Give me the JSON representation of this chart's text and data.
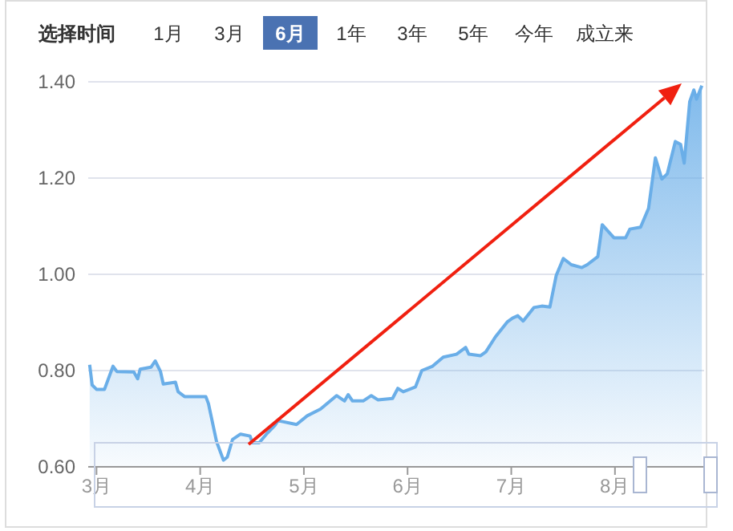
{
  "chart_data": {
    "type": "area",
    "title": "选择时间",
    "annotations": [
      "1月",
      "3月",
      "6月",
      "1年",
      "3年",
      "5年",
      "今年",
      "成立来"
    ],
    "x": [
      2.934,
      2.958,
      3.0,
      3.077,
      3.159,
      3.196,
      3.36,
      3.397,
      3.421,
      3.525,
      3.566,
      3.617,
      3.644,
      3.761,
      3.787,
      3.849,
      4.054,
      4.08,
      4.157,
      4.224,
      4.261,
      4.312,
      4.389,
      4.481,
      4.502,
      4.569,
      4.647,
      4.724,
      4.75,
      4.929,
      5.032,
      5.16,
      5.315,
      5.392,
      5.427,
      5.469,
      5.572,
      5.65,
      5.716,
      5.855,
      5.906,
      5.958,
      6.076,
      6.137,
      6.241,
      6.344,
      6.472,
      6.56,
      6.591,
      6.704,
      6.755,
      6.847,
      6.961,
      7.012,
      7.063,
      7.115,
      7.218,
      7.295,
      7.372,
      7.434,
      7.502,
      7.579,
      7.681,
      7.733,
      7.835,
      7.877,
      7.99,
      8.103,
      8.144,
      8.247,
      8.324,
      8.39,
      8.452,
      8.505,
      8.582,
      8.633,
      8.668,
      8.721,
      8.761,
      8.787,
      8.838
    ],
    "series": [
      {
        "color": "#6aaee8",
        "values": [
          0.812,
          0.77,
          0.761,
          0.761,
          0.809,
          0.798,
          0.797,
          0.783,
          0.803,
          0.807,
          0.82,
          0.798,
          0.772,
          0.776,
          0.756,
          0.746,
          0.746,
          0.731,
          0.653,
          0.614,
          0.62,
          0.657,
          0.668,
          0.664,
          0.65,
          0.65,
          0.67,
          0.687,
          0.696,
          0.688,
          0.706,
          0.72,
          0.748,
          0.737,
          0.75,
          0.737,
          0.737,
          0.748,
          0.739,
          0.742,
          0.763,
          0.756,
          0.766,
          0.8,
          0.809,
          0.828,
          0.834,
          0.848,
          0.834,
          0.831,
          0.839,
          0.87,
          0.901,
          0.909,
          0.914,
          0.903,
          0.931,
          0.934,
          0.932,
          0.998,
          1.033,
          1.02,
          1.014,
          1.02,
          1.037,
          1.103,
          1.076,
          1.076,
          1.094,
          1.098,
          1.137,
          1.242,
          1.198,
          1.209,
          1.276,
          1.27,
          1.231,
          1.359,
          1.383,
          1.364,
          1.392
        ]
      }
    ],
    "xlim": [
      2.92,
      8.86
    ],
    "xticks": [
      {
        "value": 3,
        "label": "3月"
      },
      {
        "value": 4,
        "label": "4月"
      },
      {
        "value": 5,
        "label": "5月"
      },
      {
        "value": 6,
        "label": "6月"
      },
      {
        "value": 7,
        "label": "7月"
      },
      {
        "value": 8,
        "label": "8月"
      }
    ],
    "ylim": [
      0.6,
      1.4
    ],
    "yticks": [
      {
        "value": 0.6,
        "label": "0.60"
      },
      {
        "value": 0.8,
        "label": "0.80"
      },
      {
        "value": 1.0,
        "label": "1.00"
      },
      {
        "value": 1.2,
        "label": "1.20"
      },
      {
        "value": 1.4,
        "label": "1.40"
      }
    ],
    "grid": "y"
  }
}
